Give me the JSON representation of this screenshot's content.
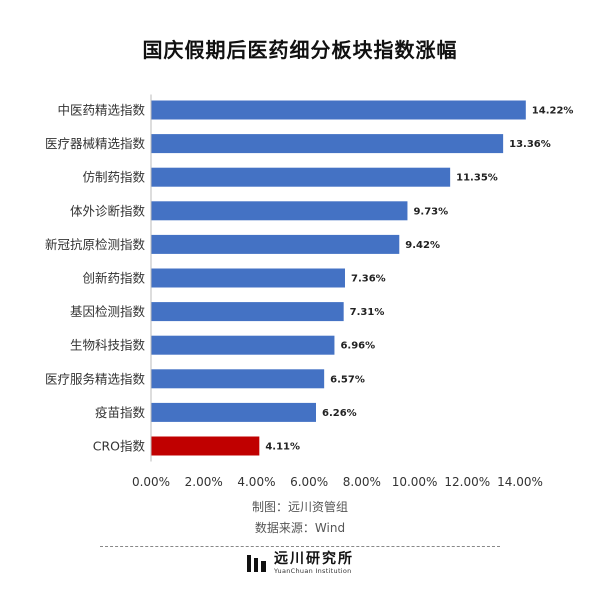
{
  "chart_data": {
    "type": "bar",
    "orientation": "horizontal",
    "title": "国庆假期后医药细分板块指数涨幅",
    "categories": [
      "中医药精选指数",
      "医疗器械精选指数",
      "仿制药指数",
      "体外诊断指数",
      "新冠抗原检测指数",
      "创新药指数",
      "基因检测指数",
      "生物科技指数",
      "医疗服务精选指数",
      "疫苗指数",
      "CRO指数"
    ],
    "values": [
      14.22,
      13.36,
      11.35,
      9.73,
      9.42,
      7.36,
      7.31,
      6.96,
      6.57,
      6.26,
      4.11
    ],
    "value_labels": [
      "14.22%",
      "13.36%",
      "11.35%",
      "9.73%",
      "9.42%",
      "7.36%",
      "7.31%",
      "6.96%",
      "6.57%",
      "6.26%",
      "4.11%"
    ],
    "xlim": [
      0,
      14
    ],
    "x_ticks": [
      0,
      2,
      4,
      6,
      8,
      10,
      12,
      14
    ],
    "x_tick_labels": [
      "0.00%",
      "2.00%",
      "4.00%",
      "6.00%",
      "8.00%",
      "10.00%",
      "12.00%",
      "14.00%"
    ],
    "bar_color": "#4472C4",
    "highlight_color": "#C00000",
    "highlight_index": 10,
    "grid": false
  },
  "footer": {
    "maker": "制图：远川资管组",
    "source": "数据来源：Wind"
  },
  "brand": {
    "name": "远川研究所",
    "subtitle": "YuanChuan Institution"
  }
}
